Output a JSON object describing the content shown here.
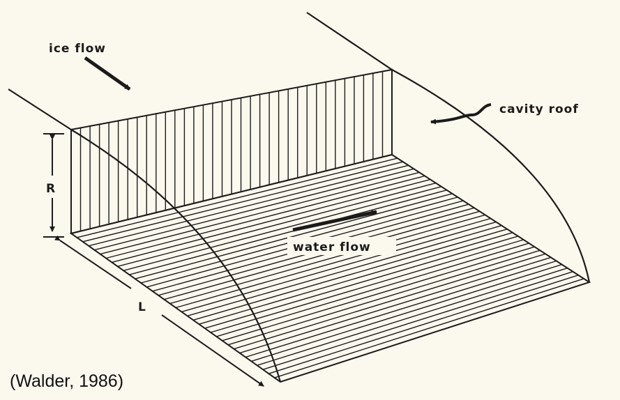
{
  "labels": {
    "ice_flow": "ice flow",
    "cavity_roof": "cavity roof",
    "water_flow": "water flow",
    "dim_r": "R",
    "dim_l": "L"
  },
  "citation": "(Walder, 1986)",
  "colors": {
    "background": "#fbf8ee",
    "ink": "#1b1b1b"
  }
}
